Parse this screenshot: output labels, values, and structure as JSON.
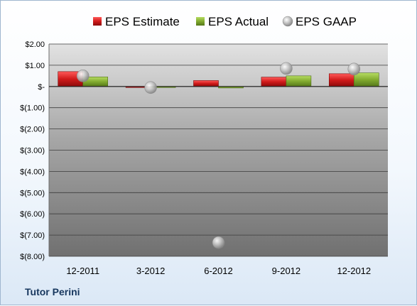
{
  "company": "Tutor Perini",
  "chart_data": {
    "type": "bar",
    "categories": [
      "12-2011",
      "3-2012",
      "6-2012",
      "9-2012",
      "12-2012"
    ],
    "series": [
      {
        "name": "EPS Estimate",
        "kind": "bar",
        "color": "#c0151b",
        "values": [
          0.7,
          0.0,
          0.28,
          0.44,
          0.6
        ]
      },
      {
        "name": "EPS Actual",
        "kind": "bar",
        "color": "#7aa22a",
        "values": [
          0.45,
          -0.04,
          -0.07,
          0.5,
          0.64
        ]
      },
      {
        "name": "EPS GAAP",
        "kind": "marker",
        "color": "#b0b0b0",
        "values": [
          0.5,
          -0.05,
          -7.35,
          0.85,
          0.82
        ]
      }
    ],
    "yticks": [
      2.0,
      1.0,
      0.0,
      -1.0,
      -2.0,
      -3.0,
      -4.0,
      -5.0,
      -6.0,
      -7.0,
      -8.0
    ],
    "ytick_labels": [
      "$2.00",
      "$1.00",
      "$-",
      "$(1.00)",
      "$(2.00)",
      "$(3.00)",
      "$(4.00)",
      "$(5.00)",
      "$(6.00)",
      "$(7.00)",
      "$(8.00)"
    ],
    "ylim": [
      -8,
      2
    ],
    "grid": true,
    "legend_position": "top"
  }
}
